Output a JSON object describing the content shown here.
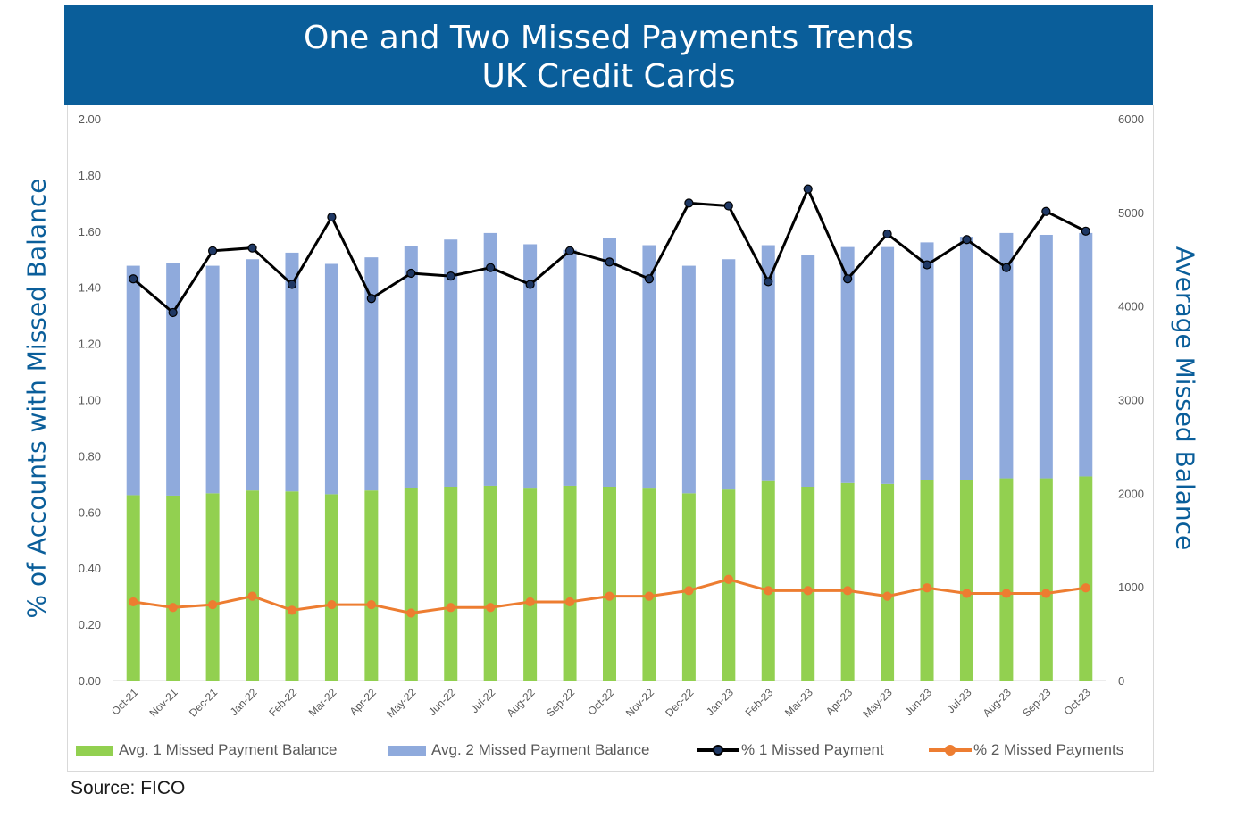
{
  "title": {
    "line1": "One and Two Missed Payments Trends",
    "line2": "UK Credit Cards"
  },
  "source": "Source: FICO",
  "colors": {
    "banner": "#0a5e9a",
    "green_bar": "#92d050",
    "blue_bar": "#8faadc",
    "black_line": "#000000",
    "orange_line": "#ed7d31",
    "axis_title": "#0a5e9a"
  },
  "chart_data": {
    "type": "bar",
    "stacked": true,
    "ylabel": "% of Accounts with Missed Balance",
    "y2label": "Average Missed Balance",
    "ylim": [
      0,
      2.0
    ],
    "y2lim": [
      0,
      6000
    ],
    "yticks": [
      "0.00",
      "0.20",
      "0.40",
      "0.60",
      "0.80",
      "1.00",
      "1.20",
      "1.40",
      "1.60",
      "1.80",
      "2.00"
    ],
    "y2ticks": [
      "0",
      "1000",
      "2000",
      "3000",
      "4000",
      "5000",
      "6000"
    ],
    "categories": [
      "Oct-21",
      "Nov-21",
      "Dec-21",
      "Jan-22",
      "Feb-22",
      "Mar-22",
      "Apr-22",
      "May-22",
      "Jun-22",
      "Jul-22",
      "Aug-22",
      "Sep-22",
      "Oct-22",
      "Nov-22",
      "Dec-22",
      "Jan-23",
      "Feb-23",
      "Mar-23",
      "Apr-23",
      "May-23",
      "Jun-23",
      "Jul-23",
      "Aug-23",
      "Sep-23",
      "Oct-23"
    ],
    "grid": false,
    "legend_position": "bottom",
    "series": [
      {
        "name": "Avg. 1 Missed Payment Balance",
        "type": "bar",
        "axis": "right",
        "values": [
          1980,
          1975,
          2000,
          2030,
          2020,
          1990,
          2030,
          2060,
          2070,
          2080,
          2050,
          2080,
          2070,
          2050,
          2000,
          2040,
          2130,
          2070,
          2110,
          2100,
          2140,
          2140,
          2160,
          2160,
          2180
        ]
      },
      {
        "name": "Avg. 2 Missed Payment Balance",
        "type": "bar",
        "axis": "right",
        "values": [
          2450,
          2480,
          2430,
          2470,
          2550,
          2460,
          2490,
          2580,
          2640,
          2700,
          2610,
          2520,
          2660,
          2600,
          2430,
          2460,
          2520,
          2480,
          2520,
          2530,
          2540,
          2600,
          2620,
          2600,
          2600
        ]
      },
      {
        "name": "% 1 Missed Payment",
        "type": "line",
        "axis": "left",
        "values": [
          1.43,
          1.31,
          1.53,
          1.54,
          1.41,
          1.65,
          1.36,
          1.45,
          1.44,
          1.47,
          1.41,
          1.53,
          1.49,
          1.43,
          1.7,
          1.69,
          1.42,
          1.75,
          1.43,
          1.59,
          1.48,
          1.57,
          1.47,
          1.67,
          1.6
        ]
      },
      {
        "name": "% 2 Missed Payments",
        "type": "line",
        "axis": "left",
        "values": [
          0.28,
          0.26,
          0.27,
          0.3,
          0.25,
          0.27,
          0.27,
          0.24,
          0.26,
          0.26,
          0.28,
          0.28,
          0.3,
          0.3,
          0.32,
          0.36,
          0.32,
          0.32,
          0.32,
          0.3,
          0.33,
          0.31,
          0.31,
          0.31,
          0.33
        ]
      }
    ]
  }
}
